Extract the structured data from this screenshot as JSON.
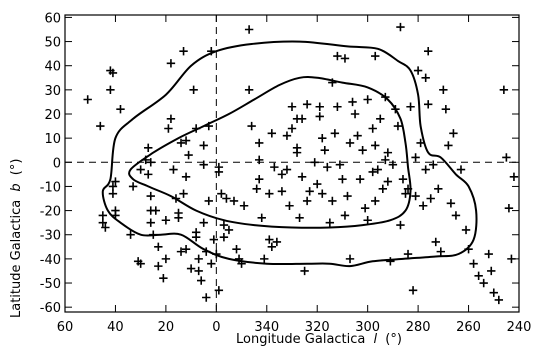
{
  "chart_data": {
    "type": "scatter",
    "title": "",
    "xlabel": "Longitude Galactica",
    "xlabel_symbol": "l",
    "xlabel_unit": "(°)",
    "ylabel": "Latitude Galactica",
    "ylabel_symbol": "b",
    "ylabel_unit": "(°)",
    "x_axis_direction": "reversed",
    "xlim": [
      60,
      -120
    ],
    "ylim": [
      -62,
      61
    ],
    "x_ticks": [
      60,
      40,
      20,
      0,
      -20,
      -40,
      -60,
      -80,
      -100,
      -120
    ],
    "x_tick_labels": [
      "60",
      "40",
      "20",
      "0",
      "340",
      "320",
      "300",
      "280",
      "260",
      "240"
    ],
    "y_ticks": [
      -60,
      -50,
      -40,
      -30,
      -20,
      -10,
      0,
      10,
      20,
      30,
      40,
      50,
      60
    ],
    "y_tick_labels": [
      "-60",
      "-50",
      "-40",
      "-30",
      "-20",
      "-10",
      "0",
      "10",
      "20",
      "30",
      "40",
      "50",
      "60"
    ],
    "reference_lines": {
      "x": 0,
      "y": 0,
      "style": "dashed"
    },
    "marker": "+",
    "grid": false,
    "points": [
      [
        51,
        26
      ],
      [
        46,
        15
      ],
      [
        42,
        38
      ],
      [
        41,
        37
      ],
      [
        42,
        30
      ],
      [
        38,
        22
      ],
      [
        40,
        -8
      ],
      [
        41,
        -10
      ],
      [
        41,
        -13
      ],
      [
        40,
        -20
      ],
      [
        40,
        -22
      ],
      [
        45,
        -22
      ],
      [
        45,
        -25
      ],
      [
        44,
        -27
      ],
      [
        33,
        -10
      ],
      [
        34,
        -30
      ],
      [
        31,
        -41
      ],
      [
        30,
        -42
      ],
      [
        30,
        -3
      ],
      [
        28,
        1
      ],
      [
        27,
        6
      ],
      [
        26,
        0
      ],
      [
        27,
        -5
      ],
      [
        26,
        -14
      ],
      [
        26,
        -20
      ],
      [
        26,
        -25
      ],
      [
        25,
        -30
      ],
      [
        24,
        -20
      ],
      [
        23,
        -35
      ],
      [
        23,
        -43
      ],
      [
        21,
        -48
      ],
      [
        20,
        -24
      ],
      [
        20,
        -40
      ],
      [
        19,
        14
      ],
      [
        18,
        18
      ],
      [
        18,
        41
      ],
      [
        17,
        -3
      ],
      [
        16,
        -15
      ],
      [
        15,
        -21
      ],
      [
        15,
        -23
      ],
      [
        14,
        8
      ],
      [
        14,
        -37
      ],
      [
        13,
        46
      ],
      [
        13,
        -13
      ],
      [
        12,
        9
      ],
      [
        12,
        -6
      ],
      [
        12,
        -36
      ],
      [
        11,
        3
      ],
      [
        10,
        -44
      ],
      [
        9,
        30
      ],
      [
        8,
        14
      ],
      [
        8,
        -29
      ],
      [
        8,
        -31
      ],
      [
        7,
        -40
      ],
      [
        7,
        -45
      ],
      [
        6,
        -49
      ],
      [
        5,
        7
      ],
      [
        5,
        -1
      ],
      [
        5,
        -25
      ],
      [
        4,
        -37
      ],
      [
        4,
        -56
      ],
      [
        3,
        15
      ],
      [
        3,
        -16
      ],
      [
        2,
        46
      ],
      [
        2,
        -42
      ],
      [
        1,
        -32
      ],
      [
        0,
        -38
      ],
      [
        -1,
        -2
      ],
      [
        -1,
        -4
      ],
      [
        -1,
        -53
      ],
      [
        -2,
        -13
      ],
      [
        -3,
        -26
      ],
      [
        -3,
        -31
      ],
      [
        -4,
        -15
      ],
      [
        -5,
        -28
      ],
      [
        -7,
        -16
      ],
      [
        -8,
        -36
      ],
      [
        -9,
        -40
      ],
      [
        -10,
        -42
      ],
      [
        -11,
        -18
      ],
      [
        -13,
        30
      ],
      [
        -13,
        55
      ],
      [
        -14,
        15
      ],
      [
        -16,
        -11
      ],
      [
        -17,
        8
      ],
      [
        -17,
        1
      ],
      [
        -17,
        -7
      ],
      [
        -18,
        -23
      ],
      [
        -19,
        -40
      ],
      [
        -21,
        -32
      ],
      [
        -21,
        -13
      ],
      [
        -22,
        12
      ],
      [
        -22,
        -35
      ],
      [
        -23,
        -2
      ],
      [
        -24,
        -33
      ],
      [
        -26,
        -5
      ],
      [
        -26,
        -12
      ],
      [
        -28,
        11
      ],
      [
        -28,
        -3
      ],
      [
        -29,
        -18
      ],
      [
        -30,
        14
      ],
      [
        -30,
        23
      ],
      [
        -32,
        18
      ],
      [
        -32,
        4
      ],
      [
        -32,
        6
      ],
      [
        -33,
        -23
      ],
      [
        -34,
        18
      ],
      [
        -34,
        -6
      ],
      [
        -35,
        -45
      ],
      [
        -36,
        24
      ],
      [
        -36,
        -16
      ],
      [
        -37,
        -12
      ],
      [
        -39,
        0
      ],
      [
        -40,
        -9
      ],
      [
        -41,
        19
      ],
      [
        -41,
        23
      ],
      [
        -42,
        10
      ],
      [
        -42,
        -13
      ],
      [
        -43,
        5
      ],
      [
        -44,
        -2
      ],
      [
        -45,
        -25
      ],
      [
        -46,
        33
      ],
      [
        -46,
        -16
      ],
      [
        -47,
        12
      ],
      [
        -48,
        44
      ],
      [
        -48,
        23
      ],
      [
        -49,
        -1
      ],
      [
        -50,
        -7
      ],
      [
        -51,
        43
      ],
      [
        -51,
        -22
      ],
      [
        -52,
        -14
      ],
      [
        -53,
        8
      ],
      [
        -53,
        -40
      ],
      [
        -54,
        25
      ],
      [
        -55,
        20
      ],
      [
        -56,
        11
      ],
      [
        -57,
        -7
      ],
      [
        -58,
        5
      ],
      [
        -59,
        -19
      ],
      [
        -60,
        -24
      ],
      [
        -60,
        26
      ],
      [
        -62,
        14
      ],
      [
        -62,
        -4
      ],
      [
        -63,
        44
      ],
      [
        -63,
        7
      ],
      [
        -63,
        -16
      ],
      [
        -64,
        -3
      ],
      [
        -65,
        18
      ],
      [
        -66,
        -11
      ],
      [
        -67,
        27
      ],
      [
        -67,
        1
      ],
      [
        -68,
        4
      ],
      [
        -68,
        -8
      ],
      [
        -69,
        -41
      ],
      [
        -70,
        -1
      ],
      [
        -71,
        22
      ],
      [
        -72,
        15
      ],
      [
        -73,
        56
      ],
      [
        -73,
        -26
      ],
      [
        -74,
        -7
      ],
      [
        -75,
        -13
      ],
      [
        -76,
        -11
      ],
      [
        -76,
        -38
      ],
      [
        -77,
        23
      ],
      [
        -78,
        -53
      ],
      [
        -79,
        2
      ],
      [
        -79,
        -14
      ],
      [
        -80,
        38
      ],
      [
        -81,
        8
      ],
      [
        -82,
        -18
      ],
      [
        -83,
        35
      ],
      [
        -83,
        -3
      ],
      [
        -84,
        46
      ],
      [
        -84,
        24
      ],
      [
        -85,
        -15
      ],
      [
        -86,
        -1
      ],
      [
        -87,
        -33
      ],
      [
        -88,
        -11
      ],
      [
        -89,
        -37
      ],
      [
        -90,
        30
      ],
      [
        -91,
        22
      ],
      [
        -92,
        7
      ],
      [
        -93,
        -17
      ],
      [
        -94,
        12
      ],
      [
        -95,
        -22
      ],
      [
        -97,
        -3
      ],
      [
        -99,
        -28
      ],
      [
        -100,
        -36
      ],
      [
        -102,
        -42
      ],
      [
        -104,
        -47
      ],
      [
        -106,
        -50
      ],
      [
        -108,
        -38
      ],
      [
        -109,
        -45
      ],
      [
        -110,
        -54
      ],
      [
        -112,
        -57
      ],
      [
        -114,
        30
      ],
      [
        -115,
        2
      ],
      [
        -116,
        -19
      ],
      [
        -117,
        -40
      ],
      [
        -118,
        -6
      ]
    ],
    "contours": [
      {
        "level": "inner",
        "closed": true,
        "points": [
          [
            34,
            -3
          ],
          [
            25,
            4
          ],
          [
            15,
            10
          ],
          [
            5,
            15
          ],
          [
            -5,
            20
          ],
          [
            -15,
            26
          ],
          [
            -25,
            32
          ],
          [
            -33,
            35
          ],
          [
            -40,
            35
          ],
          [
            -50,
            33
          ],
          [
            -60,
            31
          ],
          [
            -68,
            26
          ],
          [
            -73,
            18
          ],
          [
            -75,
            8
          ],
          [
            -76,
            -2
          ],
          [
            -77,
            -12
          ],
          [
            -75,
            -20
          ],
          [
            -69,
            -24
          ],
          [
            -58,
            -26
          ],
          [
            -45,
            -27
          ],
          [
            -30,
            -27
          ],
          [
            -15,
            -26
          ],
          [
            -3,
            -24
          ],
          [
            8,
            -20
          ],
          [
            18,
            -14
          ],
          [
            27,
            -10
          ],
          [
            33,
            -7
          ]
        ]
      },
      {
        "level": "outer",
        "closed": true,
        "points": [
          [
            42,
            -7
          ],
          [
            40,
            10
          ],
          [
            33,
            18
          ],
          [
            20,
            28
          ],
          [
            10,
            40
          ],
          [
            0,
            46
          ],
          [
            -14,
            49
          ],
          [
            -33,
            50
          ],
          [
            -52,
            48
          ],
          [
            -64,
            47
          ],
          [
            -72,
            42
          ],
          [
            -77,
            38
          ],
          [
            -80,
            28
          ],
          [
            -81,
            15
          ],
          [
            -84,
            4
          ],
          [
            -89,
            2
          ],
          [
            -95,
            -5
          ],
          [
            -100,
            -10
          ],
          [
            -103,
            -20
          ],
          [
            -102,
            -32
          ],
          [
            -96,
            -38
          ],
          [
            -87,
            -39
          ],
          [
            -74,
            -40
          ],
          [
            -62,
            -41
          ],
          [
            -53,
            -43
          ],
          [
            -45,
            -42
          ],
          [
            -36,
            -42
          ],
          [
            -20,
            -42
          ],
          [
            -5,
            -40
          ],
          [
            5,
            -36
          ],
          [
            14,
            -30
          ],
          [
            22,
            -30
          ],
          [
            30,
            -30
          ],
          [
            38,
            -25
          ],
          [
            43,
            -20
          ],
          [
            45,
            -12
          ]
        ]
      }
    ]
  }
}
